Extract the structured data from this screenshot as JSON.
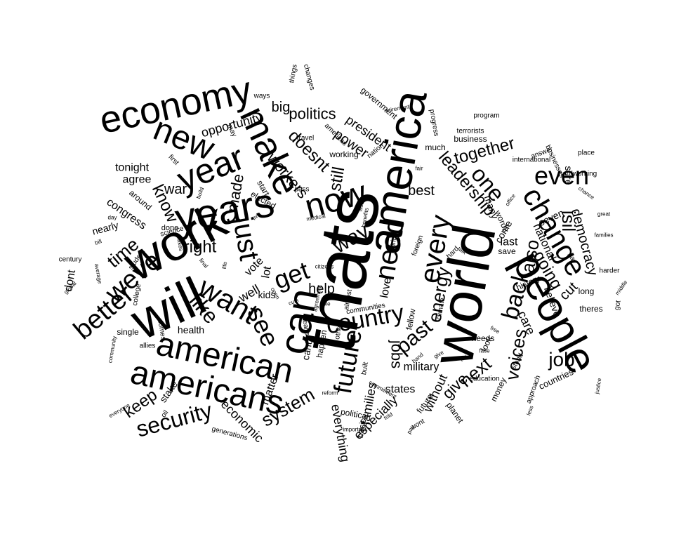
{
  "words": [
    "thats",
    "world",
    "people",
    "america",
    "will",
    "work",
    "can",
    "years",
    "make",
    "year",
    "economy",
    "new",
    "now",
    "change",
    "american",
    "americans",
    "need",
    "even",
    "want",
    "just",
    "every",
    "better",
    "weve",
    "see",
    "get",
    "country",
    "future",
    "back",
    "job",
    "past",
    "like",
    "one",
    "energy",
    "way",
    "security",
    "also",
    "isil",
    "going",
    "know",
    "jobs",
    "system",
    "voices",
    "right",
    "leadership",
    "doesnt",
    "still",
    "time",
    "workers",
    "next",
    "politics",
    "together",
    "keep",
    "give",
    "made",
    "help",
    "democracy",
    "opportunity",
    "everything",
    "cut",
    "best",
    "care",
    "economic",
    "military",
    "big",
    "without",
    "national",
    "families",
    "president",
    "last",
    "states",
    "war",
    "power",
    "lot",
    "love",
    "especially",
    "vote",
    "congress",
    "tonight",
    "agree",
    "health",
    "many",
    "dont",
    "nearly",
    "stake",
    "matter",
    "well",
    "kids",
    "done",
    "long",
    "around",
    "seven",
    "come",
    "believe",
    "sure",
    "save",
    "look",
    "needs",
    "basic",
    "political",
    "planet",
    "countries",
    "money",
    "cant",
    "future",
    "words",
    "theres",
    "pay",
    "harder",
    "wont",
    "approach",
    "stand",
    "education",
    "history",
    "got",
    "happen",
    "communities",
    "fellow",
    "almost",
    "start",
    "elected",
    "spirit",
    "may",
    "first",
    "ways",
    "things",
    "changes",
    "government",
    "retirement",
    "progress",
    "program",
    "terrorists",
    "working",
    "nation",
    "business",
    "travel",
    "americas",
    "much",
    "answer",
    "place",
    "international",
    "hardworking",
    "businesses",
    "pass",
    "science",
    "foreign",
    "hard",
    "talk",
    "climate",
    "others",
    "means",
    "single",
    "allies",
    "comes",
    "oil",
    "generations",
    "everyone",
    "important",
    "commitment",
    "benefits",
    "medical",
    "fair",
    "issues",
    "build",
    "live",
    "century",
    "average",
    "student",
    "makes",
    "final",
    "life",
    "global",
    "built",
    "college",
    "bill",
    "day",
    "office",
    "great",
    "middle",
    "justice",
    "community",
    "citizens",
    "agreement",
    "cuts",
    "able",
    "open",
    "told",
    "hand",
    "give",
    "tax",
    "face",
    "pay",
    "free",
    "less",
    "reform",
    "chance",
    "families",
    "right",
    "issues",
    "fight",
    "rules"
  ]
}
